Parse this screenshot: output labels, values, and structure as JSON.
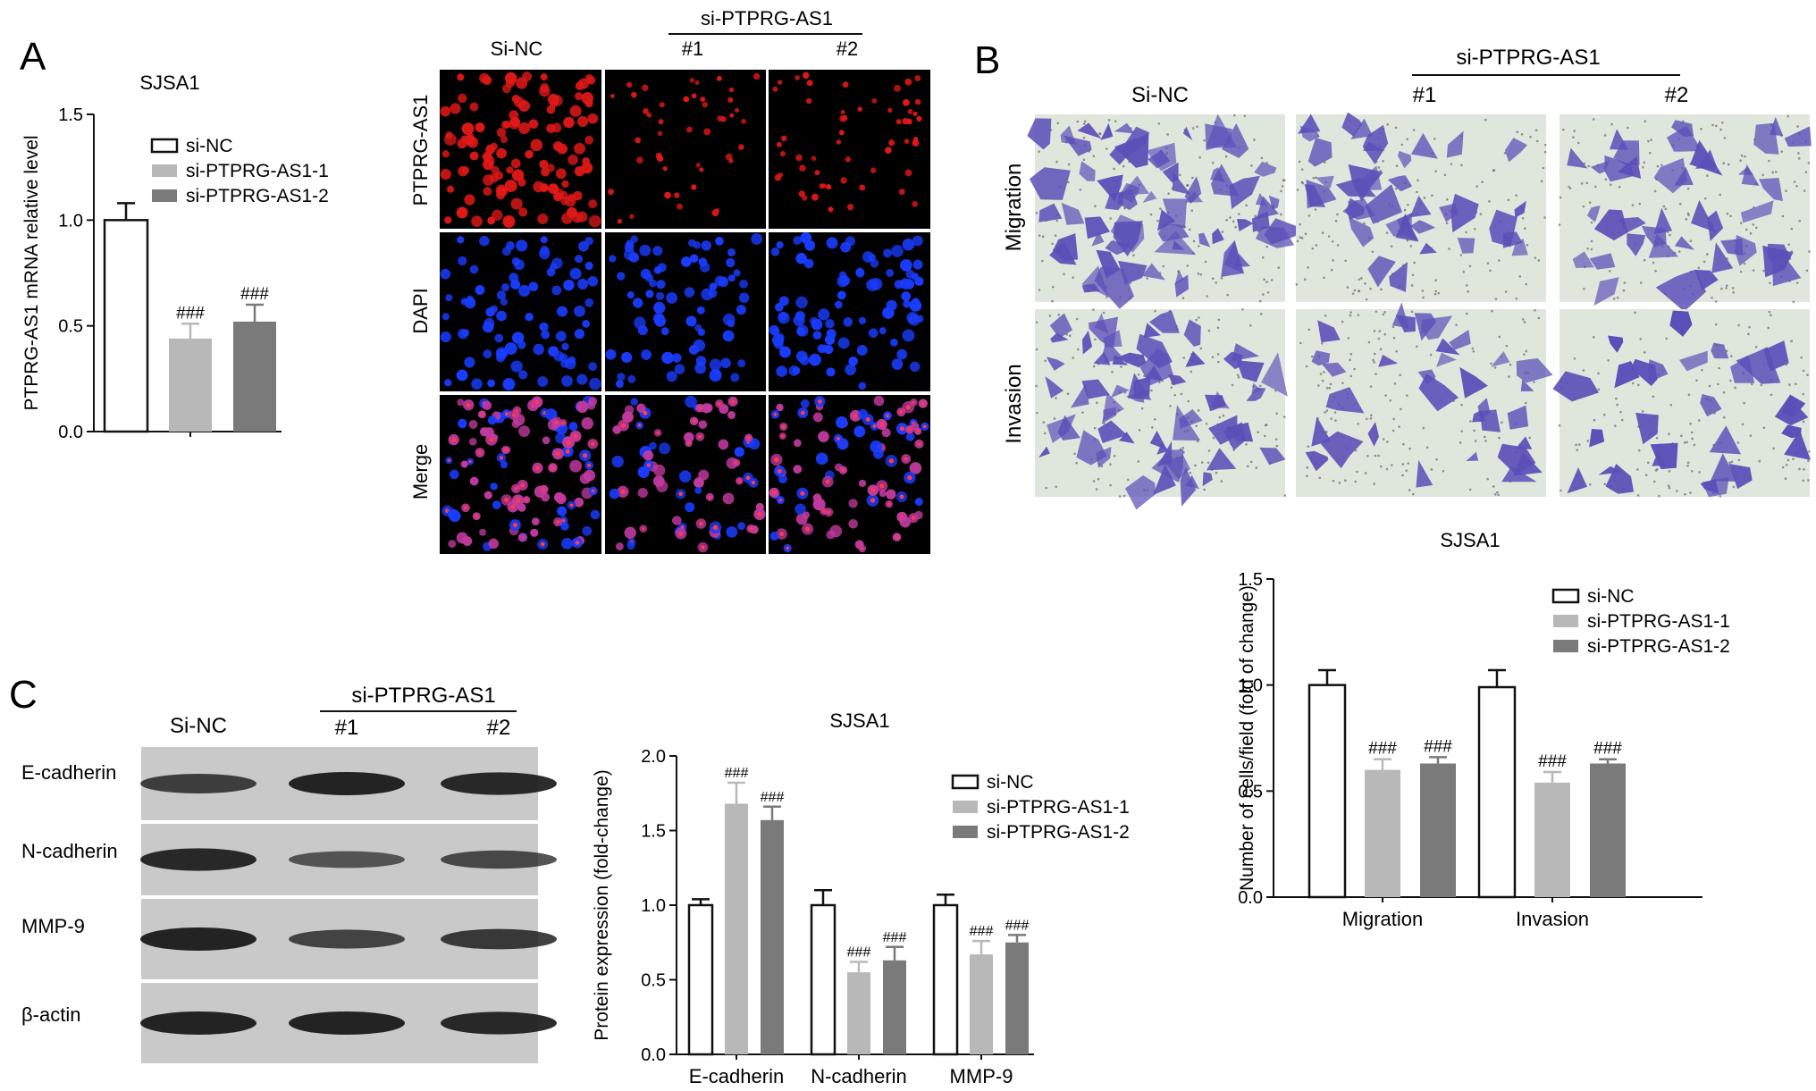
{
  "panels": {
    "A": {
      "letter": "A",
      "chart_title": "SJSA1",
      "ylabel": "PTPRG-AS1 mRNA relative level",
      "group_header": "si-PTPRG-AS1",
      "col_labels": [
        "Si-NC",
        "#1",
        "#2"
      ],
      "row_labels": [
        "PTPRG-AS1",
        "DAPI",
        "Merge"
      ]
    },
    "B": {
      "letter": "B",
      "group_header": "si-PTPRG-AS1",
      "col_labels": [
        "Si-NC",
        "#1",
        "#2"
      ],
      "row_labels": [
        "Migration",
        "Invasion"
      ],
      "chart_title": "SJSA1",
      "ylabel": "Number of cells/field (fold of change)"
    },
    "C": {
      "letter": "C",
      "group_header": "si-PTPRG-AS1",
      "col_labels": [
        "Si-NC",
        "#1",
        "#2"
      ],
      "blot_rows": [
        "E-cadherin",
        "N-cadherin",
        "MMP-9",
        "β-actin"
      ],
      "chart_title": "SJSA1",
      "ylabel": "Protein expression (fold-change)"
    }
  },
  "colors": {
    "si_nc_fill": "#ffffff",
    "si1_fill": "#b8b8b8",
    "si2_fill": "#7a7a7a",
    "red_stain": "#e01818",
    "blue_stain": "#1a3cff",
    "merge_stain": "#c23aa0",
    "crystal_violet": "#5a4fb8",
    "membrane_bg": "#dfe6dc"
  },
  "chart_data": [
    {
      "id": "A",
      "type": "bar",
      "title": "SJSA1",
      "ylabel": "PTPRG-AS1 mRNA relative level",
      "ylim": [
        0,
        1.5
      ],
      "yticks": [
        "0.0",
        "0.5",
        "1.0",
        "1.5"
      ],
      "legend": "top-right",
      "categories": [
        ""
      ],
      "series": [
        {
          "name": "si-NC",
          "values": [
            1.0
          ],
          "errors": [
            0.08
          ],
          "annotation": [
            ""
          ]
        },
        {
          "name": "si-PTPRG-AS1-1",
          "values": [
            0.44
          ],
          "errors": [
            0.07
          ],
          "annotation": [
            "###"
          ]
        },
        {
          "name": "si-PTPRG-AS1-2",
          "values": [
            0.52
          ],
          "errors": [
            0.08
          ],
          "annotation": [
            "###"
          ]
        }
      ]
    },
    {
      "id": "B",
      "type": "bar",
      "title": "SJSA1",
      "ylabel": "Number of cells/field (fold of change)",
      "ylim": [
        0,
        1.5
      ],
      "yticks": [
        "0.0",
        "0.5",
        "1.0",
        "1.5"
      ],
      "legend": "top-right",
      "categories": [
        "Migration",
        "Invasion"
      ],
      "series": [
        {
          "name": "si-NC",
          "values": [
            1.0,
            0.99
          ],
          "errors": [
            0.07,
            0.08
          ],
          "annotation": [
            "",
            ""
          ]
        },
        {
          "name": "si-PTPRG-AS1-1",
          "values": [
            0.6,
            0.54
          ],
          "errors": [
            0.05,
            0.05
          ],
          "annotation": [
            "###",
            "###"
          ]
        },
        {
          "name": "si-PTPRG-AS1-2",
          "values": [
            0.63,
            0.63
          ],
          "errors": [
            0.03,
            0.02
          ],
          "annotation": [
            "###",
            "###"
          ]
        }
      ]
    },
    {
      "id": "C",
      "type": "bar",
      "title": "SJSA1",
      "ylabel": "Protein expression (fold-change)",
      "ylim": [
        0,
        2.0
      ],
      "yticks": [
        "0.0",
        "0.5",
        "1.0",
        "1.5",
        "2.0"
      ],
      "legend": "top-right",
      "categories": [
        "E-cadherin",
        "N-cadherin",
        "MMP-9"
      ],
      "series": [
        {
          "name": "si-NC",
          "values": [
            1.0,
            1.0,
            1.0
          ],
          "errors": [
            0.04,
            0.1,
            0.07
          ],
          "annotation": [
            "",
            "",
            ""
          ]
        },
        {
          "name": "si-PTPRG-AS1-1",
          "values": [
            1.68,
            0.55,
            0.67
          ],
          "errors": [
            0.14,
            0.07,
            0.09
          ],
          "annotation": [
            "###",
            "###",
            "###"
          ]
        },
        {
          "name": "si-PTPRG-AS1-2",
          "values": [
            1.57,
            0.63,
            0.75
          ],
          "errors": [
            0.09,
            0.09,
            0.05
          ],
          "annotation": [
            "###",
            "###",
            "###"
          ]
        }
      ]
    }
  ],
  "blot_bands": {
    "E-cadherin": [
      0.75,
      1.0,
      0.95
    ],
    "N-cadherin": [
      0.95,
      0.55,
      0.65
    ],
    "MMP-9": [
      1.0,
      0.7,
      0.8
    ],
    "β-actin": [
      1.0,
      1.0,
      0.95
    ]
  }
}
